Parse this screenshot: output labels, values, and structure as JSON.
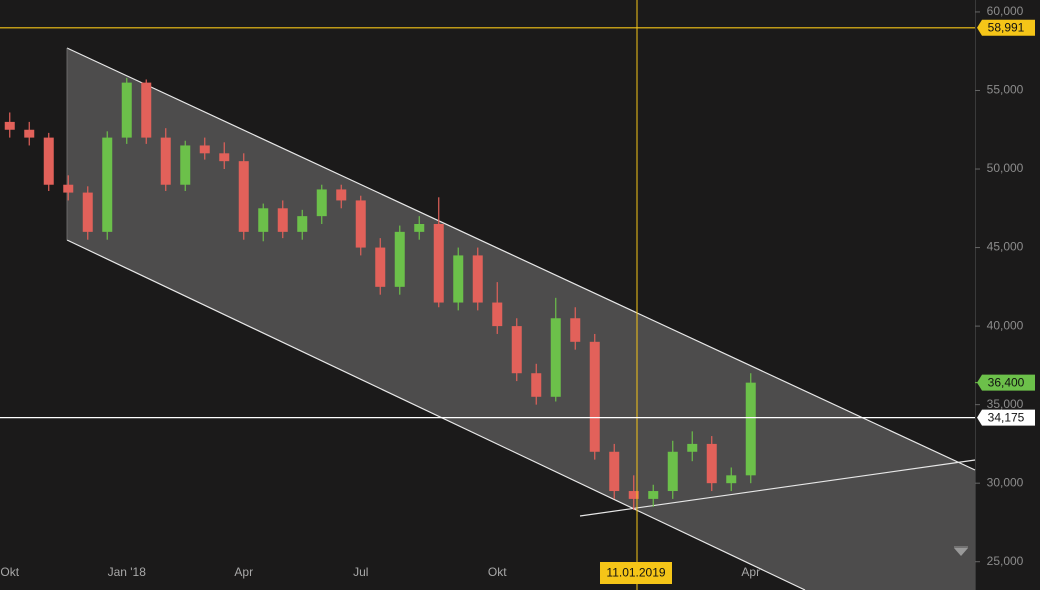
{
  "chart_data": {
    "type": "candlestick",
    "categories": [
      "Okt",
      null,
      null,
      null,
      null,
      null,
      "Jan '18",
      null,
      null,
      null,
      null,
      null,
      "Apr",
      null,
      null,
      null,
      null,
      null,
      "Jul",
      null,
      null,
      null,
      null,
      null,
      null,
      "Okt",
      null,
      null,
      null,
      null,
      null,
      null,
      null,
      null,
      null,
      null,
      null,
      null,
      "Apr",
      null,
      null,
      null,
      null,
      null,
      null,
      null,
      null,
      null,
      null,
      null
    ],
    "series": [
      {
        "up_color": "#6cc04a",
        "down_color": "#e2615a",
        "open": [
          53000,
          52500,
          52000,
          49000,
          48500,
          46000,
          52000,
          55500,
          52000,
          49000,
          51500,
          51000,
          50500,
          46000,
          47500,
          46000,
          47000,
          48700,
          48000,
          45000,
          42500,
          46000,
          46500,
          41500,
          44500,
          41500,
          40000,
          37000,
          35500,
          40500,
          39000,
          32000,
          29500,
          29000,
          29500,
          32000,
          32500,
          30000,
          30500,
          null,
          null,
          null,
          null,
          null,
          null,
          null,
          null,
          null,
          null,
          null
        ],
        "high": [
          53600,
          53000,
          52300,
          49600,
          48900,
          52400,
          55800,
          55700,
          52600,
          51800,
          52000,
          51700,
          51000,
          47800,
          48000,
          47400,
          49000,
          49000,
          48300,
          45600,
          46400,
          47000,
          48200,
          45000,
          45000,
          42800,
          40500,
          37600,
          41800,
          41200,
          39500,
          32500,
          30500,
          29900,
          32700,
          33300,
          33000,
          31000,
          37000,
          null,
          null,
          null,
          null,
          null,
          null,
          null,
          null,
          null,
          null,
          null
        ],
        "low": [
          52000,
          51500,
          48600,
          48000,
          45500,
          45500,
          51600,
          51600,
          48600,
          48600,
          50600,
          50000,
          45500,
          45400,
          45600,
          45500,
          46500,
          47500,
          44500,
          42000,
          42000,
          45500,
          41200,
          41000,
          41000,
          39500,
          36500,
          35000,
          35200,
          38500,
          31500,
          29000,
          28300,
          28500,
          29000,
          31400,
          29500,
          29500,
          30000,
          null,
          null,
          null,
          null,
          null,
          null,
          null,
          null,
          null,
          null,
          null
        ],
        "close": [
          52500,
          52000,
          49000,
          48500,
          46000,
          52000,
          55500,
          52000,
          49000,
          51500,
          51000,
          50500,
          46000,
          47500,
          46000,
          47000,
          48700,
          48000,
          45000,
          42500,
          46000,
          46500,
          41500,
          44500,
          41500,
          40000,
          37000,
          35500,
          40500,
          39000,
          32000,
          29500,
          29000,
          29500,
          32000,
          32500,
          30000,
          30500,
          36400,
          null,
          null,
          null,
          null,
          null,
          null,
          null,
          null,
          null,
          null,
          null
        ]
      }
    ],
    "ylim": [
      23200,
      60760
    ],
    "yticks": [
      {
        "value": 25000,
        "label": "25,000"
      },
      {
        "value": 30000,
        "label": "30,000"
      },
      {
        "value": 35000,
        "label": "35,000"
      },
      {
        "value": 40000,
        "label": "40,000"
      },
      {
        "value": 45000,
        "label": "45,000"
      },
      {
        "value": 50000,
        "label": "50,000"
      },
      {
        "value": 55000,
        "label": "55,000"
      },
      {
        "value": 60000,
        "label": "60,000"
      }
    ],
    "grid": false,
    "levels": [
      {
        "value": 58991,
        "label": "58,991",
        "color": "#f5c518"
      },
      {
        "value": 34175,
        "label": "34,175",
        "color": "#ffffff"
      }
    ],
    "last_price": {
      "value": 36400,
      "label": "36,400",
      "color": "#6cc04a"
    },
    "crosshair_date": "11.01.2019"
  }
}
